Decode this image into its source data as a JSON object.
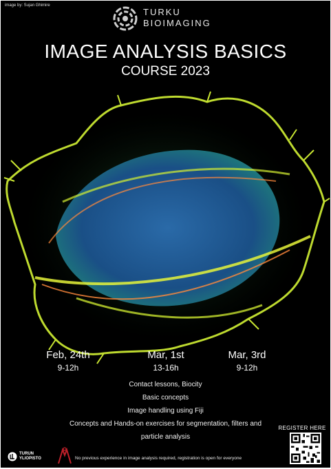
{
  "credit": "image by: Sujan Ghimire",
  "brand": {
    "line1": "TURKU",
    "line2": "BIOIMAGING"
  },
  "title": "IMAGE ANALYSIS BASICS",
  "subtitle": "COURSE 2023",
  "sessions": [
    {
      "date": "Feb, 24th",
      "time": "9-12h"
    },
    {
      "date": "Mar, 1st",
      "time": "13-16h"
    },
    {
      "date": "Mar, 3rd",
      "time": "9-12h"
    }
  ],
  "info": [
    "Contact lessons, Biocity",
    "Basic concepts",
    "Image handling using Fiji",
    "Concepts and Hands-on exercises for segmentation, filters and",
    "particle analysis"
  ],
  "register": "REGISTER HERE",
  "university": {
    "line1": "TURUN",
    "line2": "YLIOPISTO"
  },
  "footer": "No previous experience in image analysis required, registration is open for everyone",
  "colors": {
    "background": "#000000",
    "cell_outline": "#d4f032",
    "cell_nucleus": "#1d5f9a",
    "cell_fibers": "#ff8a3c",
    "accent_red": "#c0202a"
  }
}
